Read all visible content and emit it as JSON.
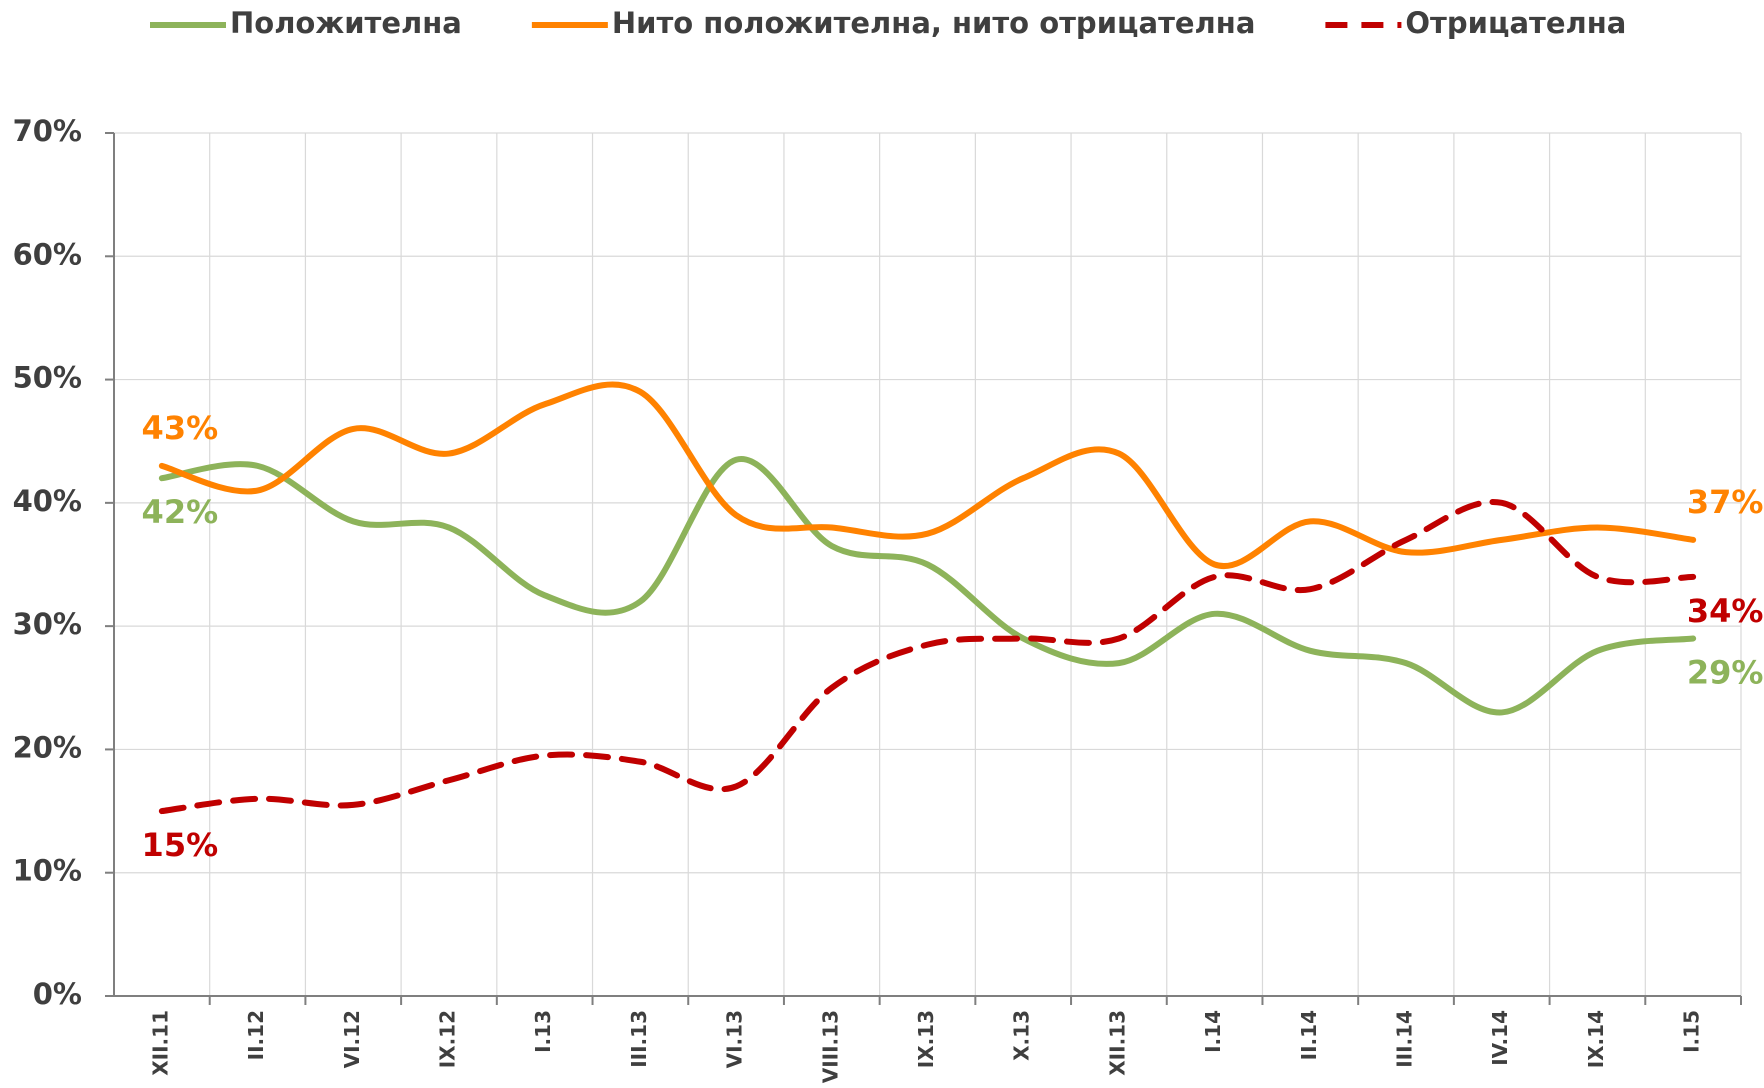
{
  "chart_data": {
    "type": "line",
    "categories": [
      "XII.11",
      "II.12",
      "VI.12",
      "IX.12",
      "I.13",
      "III.13",
      "VI.13",
      "VIII.13",
      "IX.13",
      "X.13",
      "XII.13",
      "I.14",
      "II.14",
      "III.14",
      "IV.14",
      "IX.14",
      "I.15"
    ],
    "series": [
      {
        "name": "Положителна",
        "color": "#8db35a",
        "dash": false,
        "values": [
          42,
          43,
          38.5,
          38,
          32.5,
          32,
          43.5,
          36.5,
          35,
          29,
          27,
          31,
          28,
          27,
          23,
          28,
          29
        ],
        "value_labels": [
          "42%",
          null,
          null,
          null,
          null,
          null,
          null,
          null,
          null,
          null,
          null,
          null,
          null,
          null,
          null,
          null,
          "29%"
        ]
      },
      {
        "name": "Нито положителна, нито отрицателна",
        "color": "#ff8200",
        "dash": false,
        "values": [
          43,
          41,
          46,
          44,
          48,
          49,
          39,
          38,
          37.5,
          42,
          44,
          35,
          38.5,
          36,
          37,
          38,
          37
        ],
        "value_labels": [
          "43%",
          null,
          null,
          null,
          null,
          null,
          null,
          null,
          null,
          null,
          null,
          null,
          null,
          null,
          null,
          null,
          "37%"
        ]
      },
      {
        "name": "Отрицателна",
        "color": "#c00000",
        "dash": true,
        "values": [
          15,
          16,
          15.5,
          17.5,
          19.5,
          19,
          17,
          25,
          28.5,
          29,
          29,
          34,
          33,
          37,
          40,
          34,
          34
        ],
        "value_labels": [
          "15%",
          null,
          null,
          null,
          null,
          null,
          null,
          null,
          null,
          null,
          null,
          null,
          null,
          null,
          null,
          null,
          "34%"
        ]
      }
    ],
    "ylim": [
      0,
      70
    ],
    "yticks": [
      {
        "value": 0,
        "label": "0%"
      },
      {
        "value": 10,
        "label": "10%"
      },
      {
        "value": 20,
        "label": "20%"
      },
      {
        "value": 30,
        "label": "30%"
      },
      {
        "value": 40,
        "label": "40%"
      },
      {
        "value": 50,
        "label": "50%"
      },
      {
        "value": 60,
        "label": "60%"
      },
      {
        "value": 70,
        "label": "70%"
      }
    ],
    "grid": true,
    "legend": "top"
  }
}
